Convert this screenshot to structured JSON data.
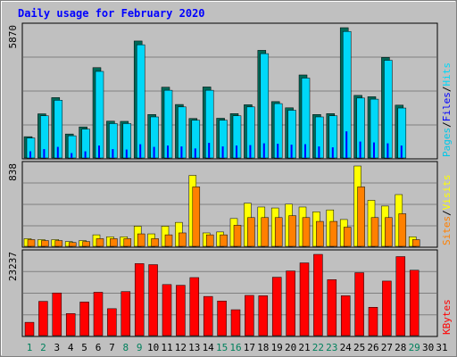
{
  "title": "Daily usage for February 2020",
  "colors": {
    "background": "#C0C0C0",
    "title": "#0000FF",
    "hits": "#00D8F8",
    "hits_shadow": "#006858",
    "files": "#0000FF",
    "pages": "#00C8E8",
    "visits": "#FFFF00",
    "sites": "#FF8000",
    "kbytes": "#FF0000",
    "weekend_label": "#00805C",
    "text": "#000000",
    "grid": "#808080"
  },
  "chart_data": [
    {
      "type": "bar",
      "name": "hits-files-pages",
      "max_label": "5870",
      "ylim": [
        0,
        5870
      ],
      "legend": [
        "Pages",
        "Files",
        "Hits"
      ],
      "legend_separator": "/",
      "series": [
        {
          "name": "Hits",
          "values": [
            960,
            1990,
            2720,
            1080,
            1400,
            4070,
            1660,
            1650,
            5270,
            1960,
            3190,
            2410,
            1780,
            3200,
            1790,
            2000,
            2400,
            4850,
            2540,
            2260,
            3740,
            1960,
            2000,
            5870,
            2820,
            2760,
            4530,
            2380,
            0
          ]
        },
        {
          "name": "Files",
          "values": [
            900,
            1900,
            2600,
            1000,
            1300,
            3900,
            1550,
            1550,
            5100,
            1850,
            3050,
            2300,
            1700,
            3050,
            1700,
            1900,
            2300,
            4700,
            2450,
            2150,
            3600,
            1850,
            1900,
            5700,
            2700,
            2650,
            4400,
            2250,
            0
          ]
        },
        {
          "name": "Pages",
          "values": [
            300,
            400,
            500,
            220,
            300,
            560,
            400,
            380,
            620,
            500,
            560,
            520,
            430,
            680,
            520,
            560,
            580,
            660,
            640,
            600,
            620,
            520,
            480,
            1200,
            740,
            700,
            660,
            560,
            0
          ]
        }
      ],
      "x": [
        1,
        2,
        3,
        4,
        5,
        6,
        7,
        8,
        9,
        10,
        11,
        12,
        13,
        14,
        15,
        16,
        17,
        18,
        19,
        20,
        21,
        22,
        23,
        24,
        25,
        26,
        27,
        28,
        29
      ]
    },
    {
      "type": "bar",
      "name": "visits-sites",
      "max_label": "838",
      "ylim": [
        0,
        838
      ],
      "legend": [
        "Sites",
        "Visits"
      ],
      "legend_separator": "/",
      "series": [
        {
          "name": "Visits",
          "values": [
            80,
            70,
            70,
            50,
            60,
            120,
            100,
            100,
            210,
            130,
            210,
            250,
            740,
            140,
            150,
            290,
            450,
            410,
            400,
            440,
            410,
            360,
            380,
            280,
            838,
            480,
            420,
            540,
            100
          ]
        },
        {
          "name": "Sites",
          "values": [
            70,
            60,
            60,
            40,
            50,
            80,
            80,
            80,
            130,
            80,
            120,
            140,
            620,
            120,
            120,
            220,
            300,
            300,
            300,
            320,
            300,
            260,
            260,
            200,
            620,
            300,
            300,
            340,
            70
          ]
        }
      ],
      "x": [
        1,
        2,
        3,
        4,
        5,
        6,
        7,
        8,
        9,
        10,
        11,
        12,
        13,
        14,
        15,
        16,
        17,
        18,
        19,
        20,
        21,
        22,
        23,
        24,
        25,
        26,
        27,
        28,
        29
      ]
    },
    {
      "type": "bar",
      "name": "kbytes",
      "max_label": "23237",
      "ylim": [
        0,
        23237
      ],
      "legend": [
        "KBytes"
      ],
      "legend_separator": "",
      "series": [
        {
          "name": "KBytes",
          "values": [
            3800,
            9800,
            12200,
            6300,
            9600,
            12400,
            7700,
            12600,
            20600,
            20300,
            14600,
            14400,
            16600,
            11200,
            9900,
            7400,
            11500,
            11400,
            16700,
            18500,
            20800,
            23237,
            16000,
            11400,
            18000,
            8100,
            15600,
            22600,
            18700
          ]
        }
      ],
      "x": [
        1,
        2,
        3,
        4,
        5,
        6,
        7,
        8,
        9,
        10,
        11,
        12,
        13,
        14,
        15,
        16,
        17,
        18,
        19,
        20,
        21,
        22,
        23,
        24,
        25,
        26,
        27,
        28,
        29
      ]
    }
  ],
  "x_axis": {
    "labels": [
      "1",
      "2",
      "3",
      "4",
      "5",
      "6",
      "7",
      "8",
      "9",
      "10",
      "11",
      "12",
      "13",
      "14",
      "15",
      "16",
      "17",
      "18",
      "19",
      "20",
      "21",
      "22",
      "23",
      "24",
      "25",
      "26",
      "27",
      "28",
      "29",
      "30",
      "31"
    ],
    "weekend_days": [
      "1",
      "2",
      "8",
      "9",
      "15",
      "16",
      "22",
      "23",
      "29"
    ]
  }
}
